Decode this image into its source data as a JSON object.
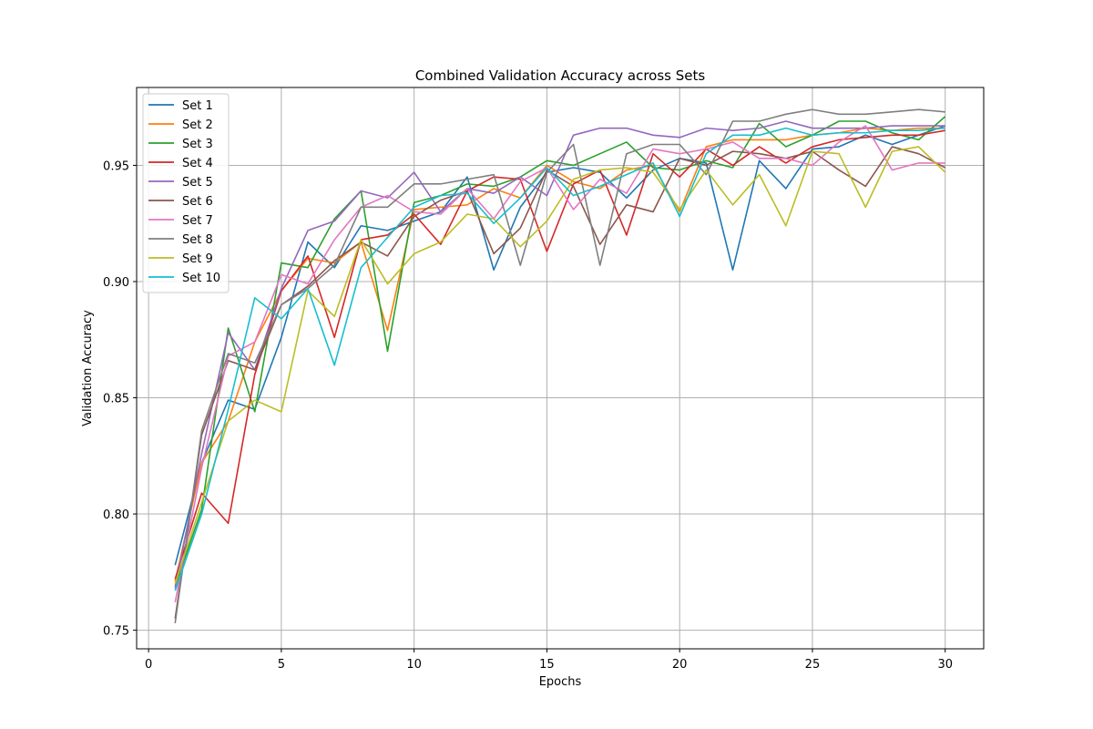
{
  "chart_data": {
    "type": "line",
    "title": "Combined Validation Accuracy across Sets",
    "xlabel": "Epochs",
    "ylabel": "Validation Accuracy",
    "xlim": [
      -0.45,
      31.45
    ],
    "ylim": [
      0.742,
      0.9835
    ],
    "xticks": [
      0,
      5,
      10,
      15,
      20,
      25,
      30
    ],
    "yticks": [
      0.75,
      0.8,
      0.85,
      0.9,
      0.95
    ],
    "ytick_labels": [
      "0.75",
      "0.80",
      "0.85",
      "0.90",
      "0.95"
    ],
    "grid": true,
    "legend_position": "top-left",
    "x": [
      1,
      2,
      3,
      4,
      5,
      6,
      7,
      8,
      9,
      10,
      11,
      12,
      13,
      14,
      15,
      16,
      17,
      18,
      19,
      20,
      21,
      22,
      23,
      24,
      25,
      26,
      27,
      28,
      29,
      30
    ],
    "series": [
      {
        "name": "Set 1",
        "color": "#1f77b4",
        "values": [
          0.778,
          0.822,
          0.849,
          0.845,
          0.876,
          0.917,
          0.906,
          0.924,
          0.922,
          0.926,
          0.93,
          0.945,
          0.905,
          0.932,
          0.947,
          0.949,
          0.947,
          0.936,
          0.948,
          0.953,
          0.951,
          0.905,
          0.952,
          0.94,
          0.957,
          0.958,
          0.963,
          0.959,
          0.963,
          0.967
        ]
      },
      {
        "name": "Set 2",
        "color": "#ff7f0e",
        "values": [
          0.771,
          0.822,
          0.84,
          0.874,
          0.896,
          0.91,
          0.908,
          0.917,
          0.879,
          0.931,
          0.932,
          0.933,
          0.94,
          0.936,
          0.95,
          0.943,
          0.94,
          0.948,
          0.95,
          0.93,
          0.958,
          0.961,
          0.961,
          0.961,
          0.963,
          0.964,
          0.966,
          0.965,
          0.966,
          0.966
        ]
      },
      {
        "name": "Set 3",
        "color": "#2ca02c",
        "values": [
          0.769,
          0.802,
          0.88,
          0.844,
          0.908,
          0.906,
          0.927,
          0.939,
          0.87,
          0.934,
          0.937,
          0.942,
          0.941,
          0.945,
          0.952,
          0.95,
          0.955,
          0.96,
          0.949,
          0.948,
          0.952,
          0.949,
          0.968,
          0.958,
          0.963,
          0.969,
          0.969,
          0.964,
          0.961,
          0.971
        ]
      },
      {
        "name": "Set 4",
        "color": "#d62728",
        "values": [
          0.772,
          0.809,
          0.796,
          0.86,
          0.896,
          0.911,
          0.876,
          0.918,
          0.92,
          0.929,
          0.916,
          0.939,
          0.945,
          0.944,
          0.913,
          0.942,
          0.948,
          0.92,
          0.955,
          0.945,
          0.957,
          0.95,
          0.958,
          0.951,
          0.958,
          0.961,
          0.962,
          0.963,
          0.963,
          0.965
        ]
      },
      {
        "name": "Set 5",
        "color": "#9467bd",
        "values": [
          0.768,
          0.826,
          0.878,
          0.862,
          0.897,
          0.922,
          0.926,
          0.939,
          0.936,
          0.947,
          0.93,
          0.94,
          0.938,
          0.945,
          0.937,
          0.963,
          0.966,
          0.966,
          0.963,
          0.962,
          0.966,
          0.965,
          0.966,
          0.969,
          0.966,
          0.966,
          0.966,
          0.967,
          0.967,
          0.967
        ]
      },
      {
        "name": "Set 6",
        "color": "#8c564b",
        "values": [
          0.755,
          0.834,
          0.866,
          0.862,
          0.89,
          0.898,
          0.909,
          0.917,
          0.911,
          0.928,
          0.935,
          0.939,
          0.912,
          0.923,
          0.948,
          0.941,
          0.916,
          0.933,
          0.93,
          0.953,
          0.95,
          0.956,
          0.955,
          0.953,
          0.956,
          0.948,
          0.941,
          0.958,
          0.955,
          0.949
        ]
      },
      {
        "name": "Set 7",
        "color": "#e377c2",
        "values": [
          0.762,
          0.82,
          0.868,
          0.874,
          0.903,
          0.899,
          0.918,
          0.932,
          0.937,
          0.93,
          0.929,
          0.94,
          0.927,
          0.943,
          0.949,
          0.931,
          0.944,
          0.938,
          0.957,
          0.955,
          0.957,
          0.96,
          0.953,
          0.953,
          0.95,
          0.96,
          0.967,
          0.948,
          0.951,
          0.951
        ]
      },
      {
        "name": "Set 8",
        "color": "#7f7f7f",
        "values": [
          0.753,
          0.836,
          0.869,
          0.865,
          0.89,
          0.897,
          0.907,
          0.932,
          0.932,
          0.942,
          0.942,
          0.944,
          0.946,
          0.907,
          0.947,
          0.959,
          0.907,
          0.955,
          0.959,
          0.959,
          0.946,
          0.969,
          0.969,
          0.972,
          0.974,
          0.972,
          0.972,
          0.973,
          0.974,
          0.973
        ]
      },
      {
        "name": "Set 9",
        "color": "#bcbd22",
        "values": [
          0.77,
          0.805,
          0.84,
          0.849,
          0.844,
          0.896,
          0.885,
          0.918,
          0.899,
          0.912,
          0.917,
          0.929,
          0.927,
          0.915,
          0.926,
          0.944,
          0.948,
          0.949,
          0.947,
          0.931,
          0.948,
          0.933,
          0.946,
          0.924,
          0.956,
          0.955,
          0.932,
          0.956,
          0.958,
          0.947
        ]
      },
      {
        "name": "Set 10",
        "color": "#17becf",
        "values": [
          0.767,
          0.8,
          0.845,
          0.893,
          0.884,
          0.897,
          0.864,
          0.906,
          0.919,
          0.932,
          0.937,
          0.938,
          0.925,
          0.936,
          0.949,
          0.937,
          0.941,
          0.946,
          0.951,
          0.928,
          0.955,
          0.963,
          0.963,
          0.966,
          0.963,
          0.964,
          0.964,
          0.965,
          0.965,
          0.966
        ]
      }
    ]
  }
}
